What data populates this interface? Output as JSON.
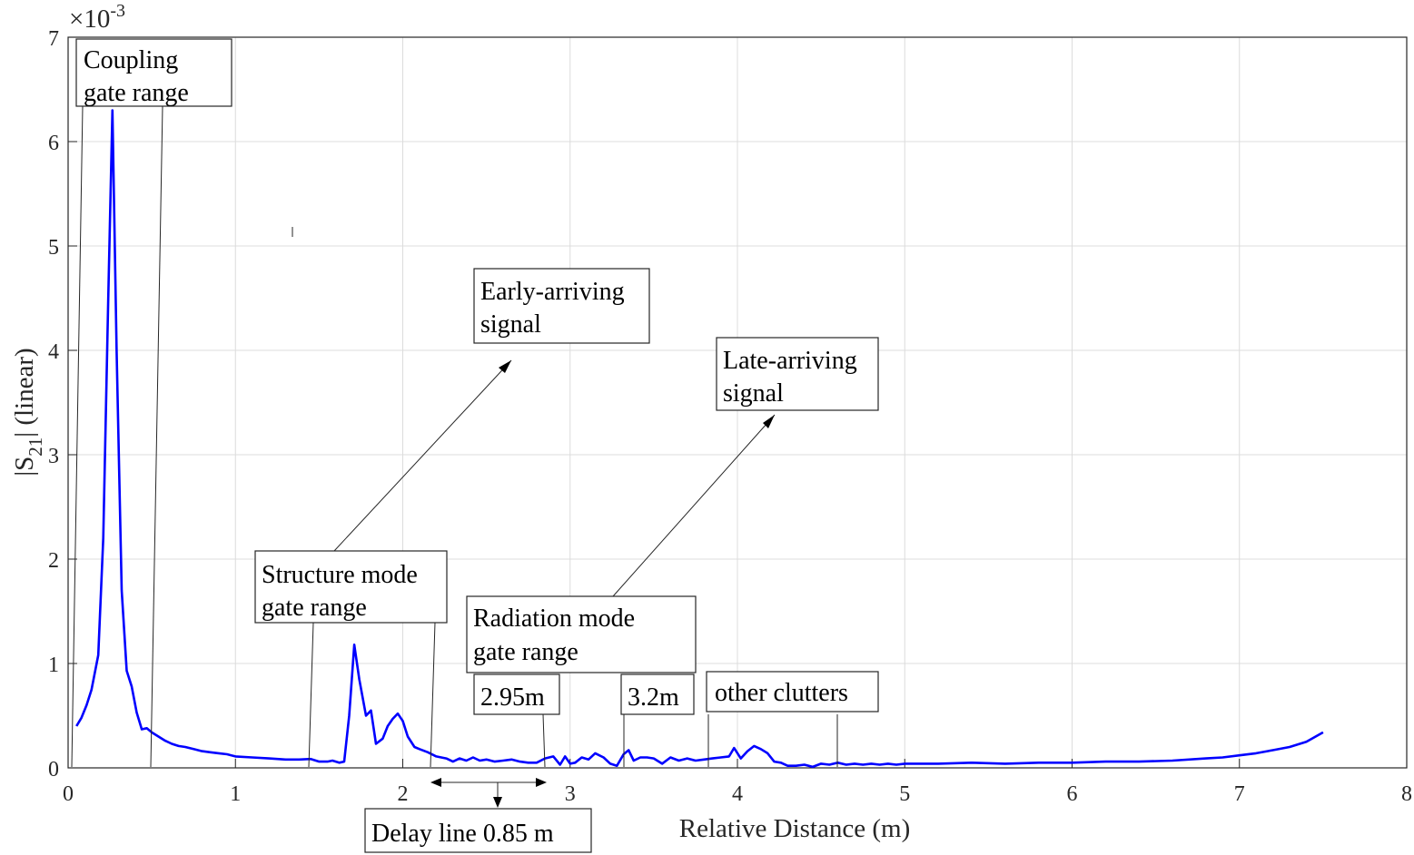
{
  "chart_data": {
    "type": "line",
    "xlabel": "Relative Distance (m)",
    "ylabel_main": "|S",
    "ylabel_sub": "21",
    "ylabel_rest": "| (linear)",
    "y_exponent_base": "×10",
    "y_exponent_power": "-3",
    "xlim": [
      0,
      8
    ],
    "ylim": [
      0,
      7
    ],
    "x_ticks": [
      "0",
      "1",
      "2",
      "3",
      "4",
      "5",
      "6",
      "7",
      "8"
    ],
    "y_ticks": [
      "0",
      "1",
      "2",
      "3",
      "4",
      "5",
      "6",
      "7"
    ],
    "grid": true,
    "line_color": "#0000ff",
    "x": [
      0.05,
      0.08,
      0.11,
      0.14,
      0.18,
      0.21,
      0.24,
      0.265,
      0.29,
      0.32,
      0.35,
      0.38,
      0.41,
      0.44,
      0.47,
      0.5,
      0.54,
      0.58,
      0.62,
      0.66,
      0.7,
      0.75,
      0.8,
      0.85,
      0.9,
      0.95,
      1.0,
      1.1,
      1.2,
      1.3,
      1.38,
      1.45,
      1.5,
      1.55,
      1.58,
      1.62,
      1.65,
      1.68,
      1.71,
      1.74,
      1.78,
      1.81,
      1.84,
      1.88,
      1.91,
      1.94,
      1.97,
      2.0,
      2.03,
      2.07,
      2.1,
      2.15,
      2.2,
      2.26,
      2.3,
      2.34,
      2.38,
      2.42,
      2.46,
      2.5,
      2.55,
      2.6,
      2.65,
      2.7,
      2.75,
      2.8,
      2.85,
      2.9,
      2.94,
      2.97,
      3.0,
      3.03,
      3.07,
      3.11,
      3.15,
      3.2,
      3.24,
      3.28,
      3.32,
      3.35,
      3.38,
      3.42,
      3.46,
      3.5,
      3.55,
      3.6,
      3.65,
      3.7,
      3.75,
      3.8,
      3.85,
      3.9,
      3.95,
      3.98,
      4.02,
      4.06,
      4.1,
      4.14,
      4.18,
      4.22,
      4.26,
      4.3,
      4.35,
      4.4,
      4.45,
      4.5,
      4.55,
      4.6,
      4.65,
      4.7,
      4.75,
      4.8,
      4.85,
      4.9,
      4.95,
      5.0,
      5.2,
      5.4,
      5.6,
      5.8,
      6.0,
      6.2,
      6.4,
      6.6,
      6.8,
      6.9,
      7.0,
      7.1,
      7.2,
      7.3,
      7.4,
      7.5
    ],
    "values": [
      0.4,
      0.48,
      0.6,
      0.75,
      1.08,
      2.2,
      4.5,
      6.3,
      4.0,
      1.7,
      0.93,
      0.78,
      0.53,
      0.37,
      0.38,
      0.34,
      0.3,
      0.26,
      0.23,
      0.21,
      0.2,
      0.18,
      0.16,
      0.15,
      0.14,
      0.13,
      0.11,
      0.1,
      0.09,
      0.08,
      0.08,
      0.085,
      0.06,
      0.06,
      0.07,
      0.05,
      0.06,
      0.5,
      1.18,
      0.85,
      0.5,
      0.55,
      0.23,
      0.28,
      0.4,
      0.47,
      0.52,
      0.45,
      0.3,
      0.2,
      0.18,
      0.15,
      0.11,
      0.09,
      0.06,
      0.09,
      0.07,
      0.1,
      0.07,
      0.08,
      0.06,
      0.07,
      0.08,
      0.06,
      0.05,
      0.05,
      0.09,
      0.11,
      0.03,
      0.11,
      0.04,
      0.05,
      0.1,
      0.08,
      0.14,
      0.1,
      0.04,
      0.02,
      0.13,
      0.17,
      0.07,
      0.1,
      0.1,
      0.09,
      0.04,
      0.1,
      0.07,
      0.09,
      0.07,
      0.08,
      0.09,
      0.1,
      0.11,
      0.19,
      0.09,
      0.16,
      0.21,
      0.18,
      0.14,
      0.06,
      0.05,
      0.02,
      0.02,
      0.03,
      0.01,
      0.04,
      0.03,
      0.05,
      0.03,
      0.04,
      0.03,
      0.04,
      0.03,
      0.04,
      0.03,
      0.04,
      0.04,
      0.05,
      0.04,
      0.05,
      0.05,
      0.06,
      0.06,
      0.07,
      0.09,
      0.1,
      0.12,
      0.14,
      0.17,
      0.2,
      0.25,
      0.34
    ]
  },
  "annotations": {
    "coupling": [
      "Coupling",
      "gate range"
    ],
    "early": [
      "Early-arriving",
      "signal"
    ],
    "late": [
      "Late-arriving",
      "signal"
    ],
    "structure": [
      "Structure mode",
      "gate range"
    ],
    "radiation": [
      "Radiation mode",
      "gate range"
    ],
    "d295": "2.95m",
    "d32": "3.2m",
    "clutters": "other clutters",
    "delay": "Delay line 0.85 m"
  }
}
